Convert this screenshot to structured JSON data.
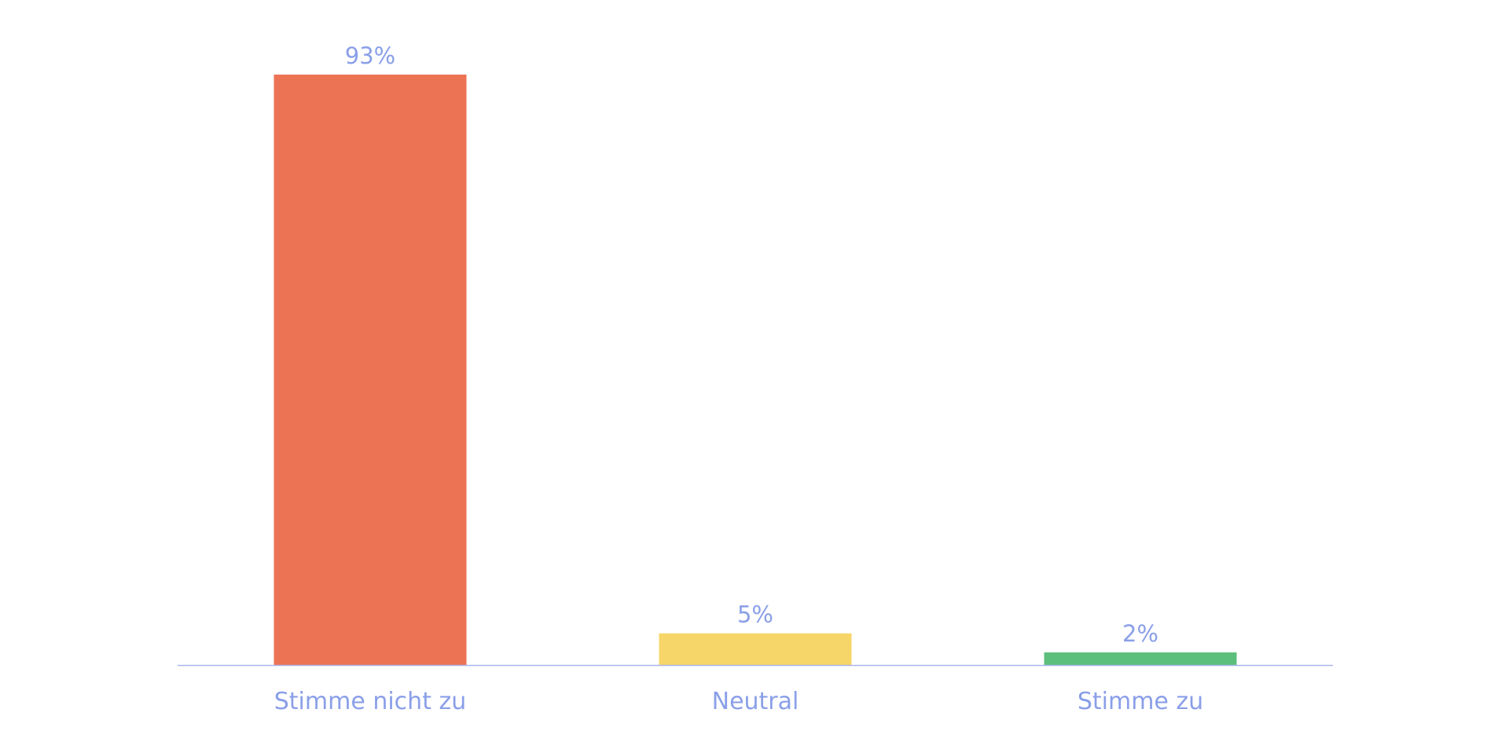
{
  "chart_data": {
    "type": "bar",
    "categories": [
      "Stimme nicht zu",
      "Neutral",
      "Stimme zu"
    ],
    "values": [
      93,
      5,
      2
    ],
    "value_labels": [
      "93%",
      "5%",
      "2%"
    ],
    "colors": [
      "#EC7354",
      "#F7D669",
      "#5CBF7C"
    ],
    "ylim": [
      0,
      93
    ],
    "grid": false,
    "label_color": "#8A9FE8",
    "axis_color": "#A9B6EE"
  }
}
